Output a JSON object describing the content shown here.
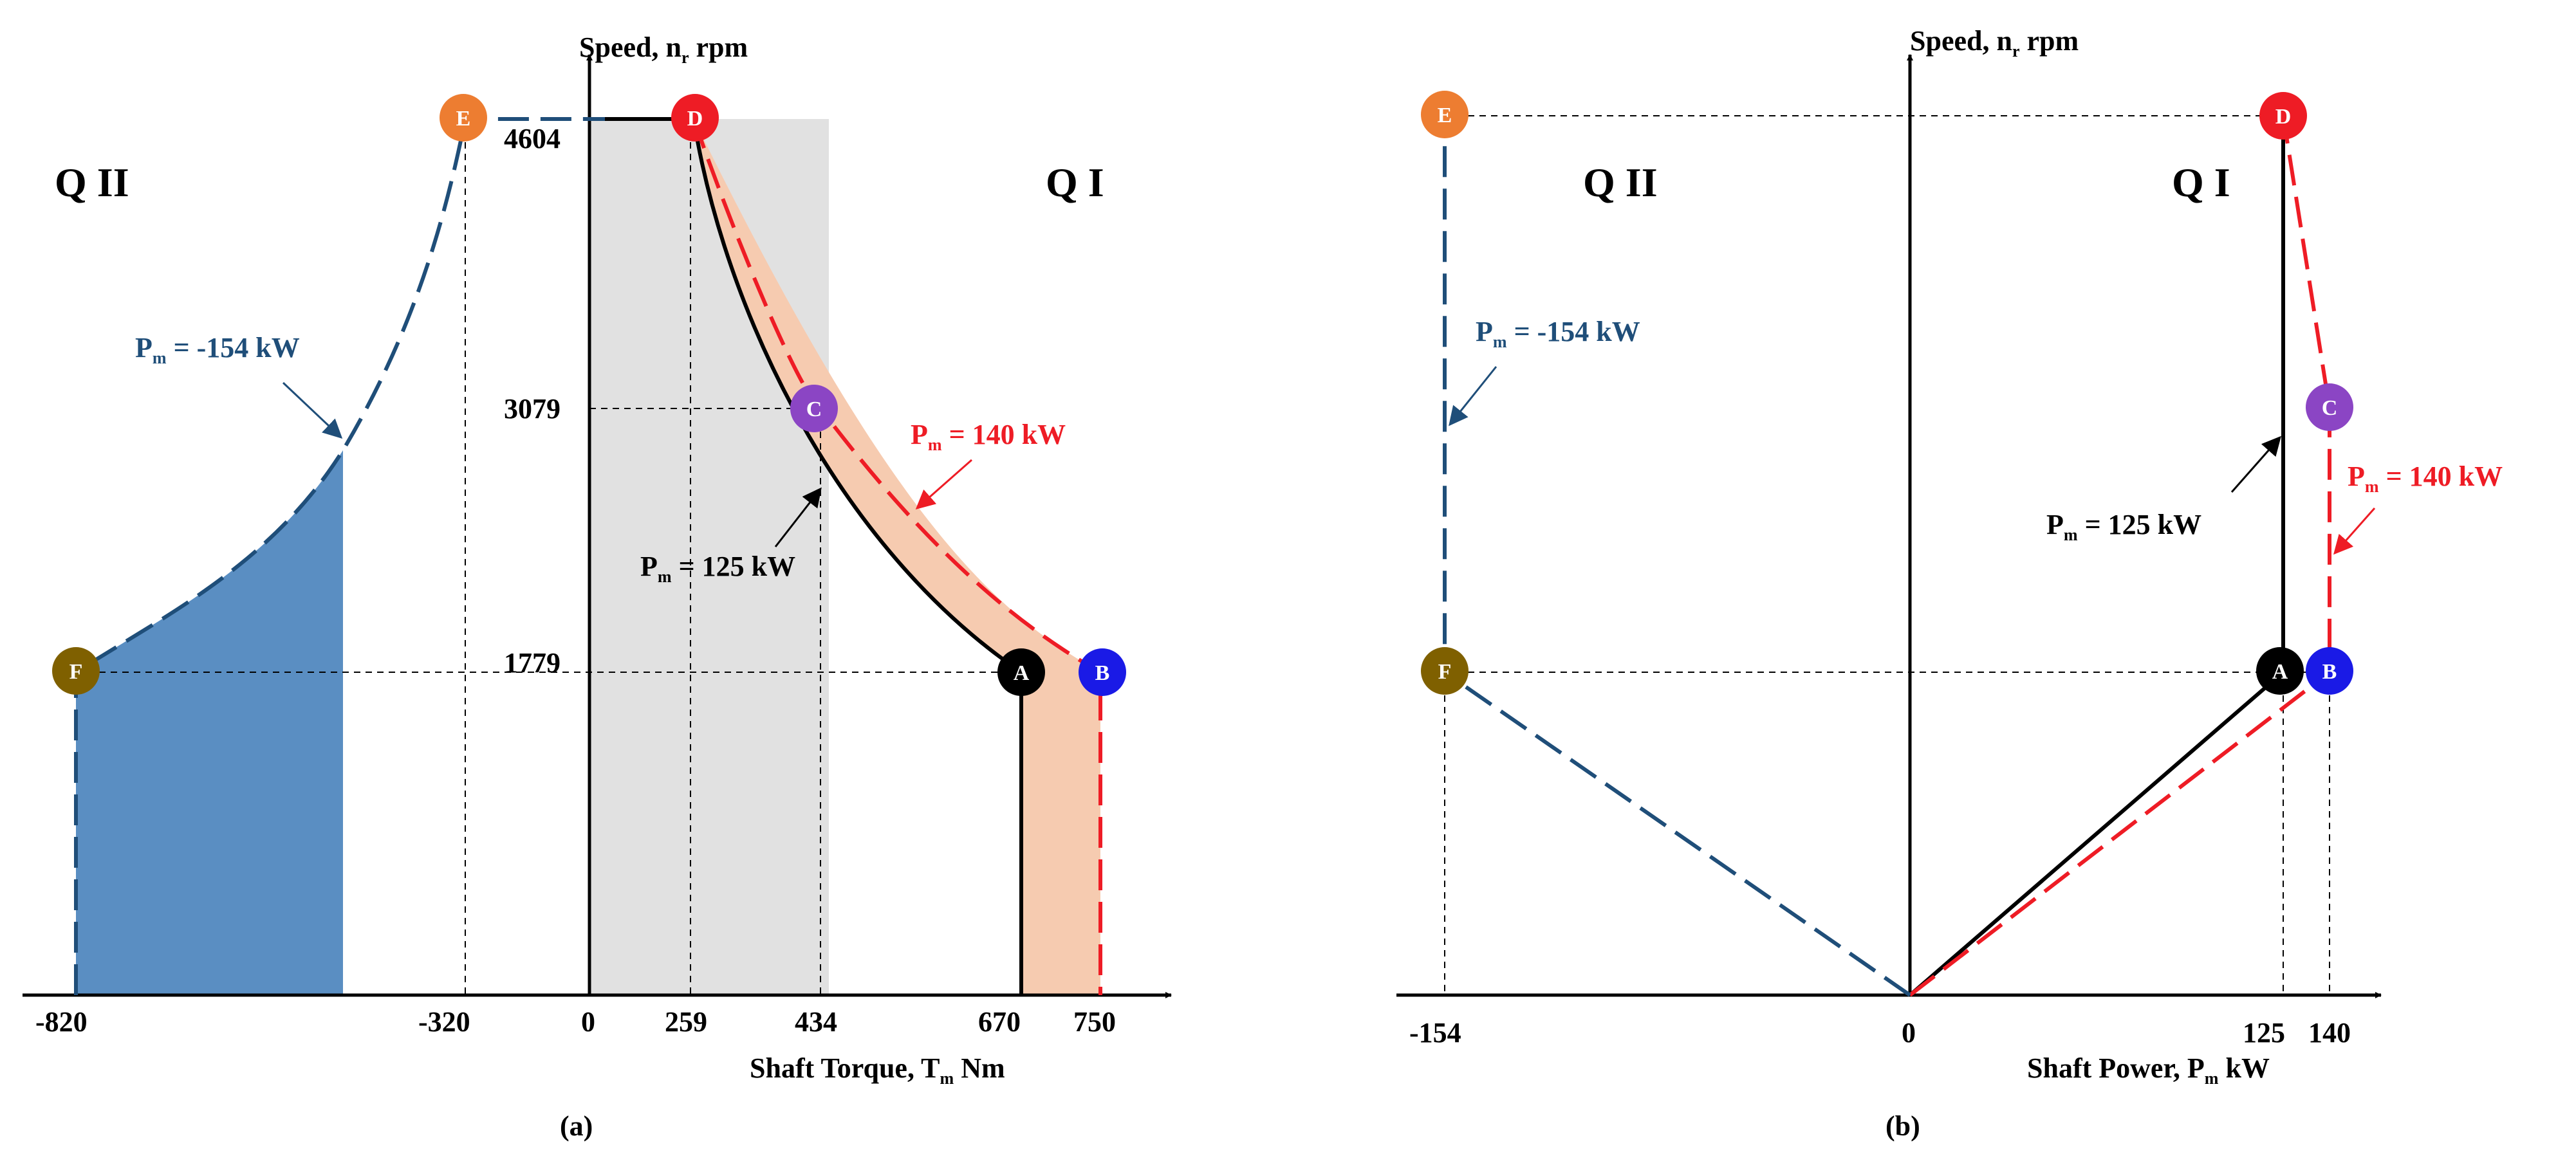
{
  "colors": {
    "blue_series": "#1f4e79",
    "blue_fill": "#5a8ec2",
    "red_series": "#ee1c25",
    "gray_fill": "#e1e1e1",
    "orange_fill": "#f6cbb0",
    "A": "#000000",
    "B": "#1a1ae6",
    "C": "#8b45c4",
    "D": "#ee1c25",
    "E": "#ed7d31",
    "F": "#7f6000"
  },
  "panel_a": {
    "y_axis_label": "Speed, n",
    "y_axis_sub": "r",
    "y_axis_unit": "rpm",
    "x_axis_label": "Shaft Torque, T",
    "x_axis_sub": "m",
    "x_axis_unit": "Nm",
    "quadrant_left": "Q II",
    "quadrant_right": "Q I",
    "caption": "(a)",
    "x_ticks": [
      "-820",
      "-320",
      "0",
      "259",
      "434",
      "670",
      "750"
    ],
    "y_ticks": [
      "4604",
      "3079",
      "1779"
    ],
    "annotations": {
      "neg": {
        "pre": "P",
        "sub": "m",
        "post": " = -154 kW"
      },
      "red": {
        "pre": "P",
        "sub": "m",
        "post": " = 140 kW"
      },
      "black": {
        "pre": "P",
        "sub": "m",
        "post": " = 125 kW"
      }
    },
    "markers": [
      "A",
      "B",
      "C",
      "D",
      "E",
      "F"
    ]
  },
  "panel_b": {
    "y_axis_label": "Speed, n",
    "y_axis_sub": "r",
    "y_axis_unit": "rpm",
    "x_axis_label": "Shaft Power, P",
    "x_axis_sub": "m",
    "x_axis_unit": "kW",
    "quadrant_left": "Q II",
    "quadrant_right": "Q I",
    "caption": "(b)",
    "x_ticks": [
      "-154",
      "0",
      "125",
      "140"
    ],
    "annotations": {
      "neg": {
        "pre": "P",
        "sub": "m",
        "post": " = -154 kW"
      },
      "red": {
        "pre": "P",
        "sub": "m",
        "post": " = 140 kW"
      },
      "black": {
        "pre": "P",
        "sub": "m",
        "post": " = 125 kW"
      }
    },
    "markers": [
      "A",
      "B",
      "C",
      "D",
      "E",
      "F"
    ]
  },
  "chart_data": [
    {
      "type": "line",
      "xlabel": "Shaft Torque, Tm Nm",
      "ylabel": "Speed, nr rpm",
      "points": {
        "A": {
          "x": 670,
          "y": 1779
        },
        "B": {
          "x": 750,
          "y": 1779
        },
        "C": {
          "x": 434,
          "y": 3079
        },
        "D": {
          "x": 259,
          "y": 4604
        },
        "E": {
          "x": -320,
          "y": 4604
        },
        "F": {
          "x": -820,
          "y": 1779
        }
      },
      "series": [
        {
          "name": "Pm = 125 kW",
          "x": [
            670,
            434,
            259
          ],
          "y": [
            1779,
            3079,
            4604
          ]
        },
        {
          "name": "Pm = 140 kW",
          "x": [
            750,
            434,
            259
          ],
          "y": [
            1779,
            3079,
            4604
          ]
        },
        {
          "name": "Pm = -154 kW",
          "x": [
            -820,
            -320
          ],
          "y": [
            1779,
            4604
          ]
        }
      ]
    },
    {
      "type": "line",
      "xlabel": "Shaft Power, Pm kW",
      "ylabel": "Speed, nr rpm",
      "points": {
        "A": {
          "x": 125,
          "y": 1779
        },
        "B": {
          "x": 140,
          "y": 1779
        },
        "C": {
          "x": 140,
          "y": 3079
        },
        "D": {
          "x": 125,
          "y": 4604
        },
        "E": {
          "x": -154,
          "y": 4604
        },
        "F": {
          "x": -154,
          "y": 1779
        }
      },
      "series": [
        {
          "name": "Pm = 125 kW",
          "x": [
            0,
            125,
            125
          ],
          "y": [
            0,
            1779,
            4604
          ]
        },
        {
          "name": "Pm = 140 kW",
          "x": [
            0,
            140,
            140,
            125
          ],
          "y": [
            0,
            1779,
            3079,
            4604
          ]
        },
        {
          "name": "Pm = -154 kW",
          "x": [
            0,
            -154,
            -154
          ],
          "y": [
            0,
            1779,
            4604
          ]
        }
      ]
    }
  ]
}
